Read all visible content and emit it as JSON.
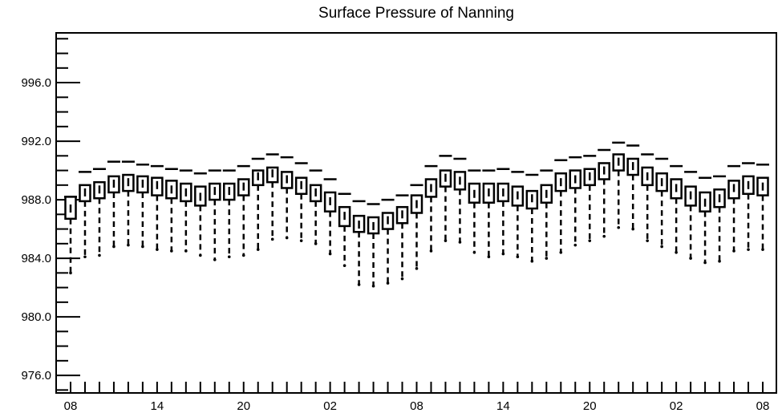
{
  "chart_data": {
    "type": "box",
    "title": "Surface Pressure of Nanning",
    "xlabel": "",
    "ylabel": "",
    "ylim": [
      974.8,
      999.4
    ],
    "y_ticks": [
      "976.0",
      "980.0",
      "984.0",
      "988.0",
      "992.0",
      "996.0"
    ],
    "x_tick_labels": [
      "08",
      "14",
      "20",
      "02",
      "08",
      "14",
      "20",
      "02",
      "08"
    ],
    "x_tick_label_index": [
      0,
      6,
      12,
      18,
      24,
      30,
      36,
      42,
      48
    ],
    "num_points": 49,
    "grid": false,
    "series": [
      {
        "whisker_high": [
          988.2,
          989.9,
          990.1,
          990.6,
          990.6,
          990.4,
          990.3,
          990.1,
          990.0,
          989.8,
          990.0,
          990.0,
          990.3,
          990.8,
          991.1,
          990.9,
          990.5,
          990.0,
          989.4,
          988.4,
          987.9,
          987.7,
          988.0,
          988.3,
          989.0,
          990.3,
          991.0,
          990.8,
          990.0,
          990.0,
          990.1,
          989.9,
          989.7,
          990.0,
          990.7,
          990.9,
          991.0,
          991.4,
          991.9,
          991.7,
          991.1,
          990.8,
          990.3,
          989.9,
          989.5,
          989.6,
          990.3,
          990.5,
          990.4
        ],
        "q3": [
          988.2,
          989.0,
          989.2,
          989.6,
          989.7,
          989.6,
          989.5,
          989.3,
          989.1,
          988.9,
          989.1,
          989.1,
          989.4,
          990.0,
          990.2,
          989.9,
          989.5,
          989.0,
          988.5,
          987.5,
          986.9,
          986.8,
          987.1,
          987.5,
          988.3,
          989.4,
          990.0,
          989.9,
          989.1,
          989.1,
          989.1,
          988.9,
          988.6,
          989.0,
          989.8,
          990.0,
          990.1,
          990.5,
          991.1,
          990.8,
          990.2,
          989.8,
          989.4,
          988.9,
          988.5,
          988.7,
          989.3,
          989.6,
          989.5
        ],
        "median": [
          987.4,
          988.5,
          988.7,
          989.1,
          989.2,
          989.1,
          989.0,
          988.7,
          988.5,
          988.2,
          988.6,
          988.6,
          988.9,
          989.6,
          989.8,
          989.4,
          989.0,
          988.5,
          987.9,
          986.9,
          986.3,
          986.2,
          986.6,
          987.0,
          987.7,
          988.8,
          989.5,
          989.3,
          988.4,
          988.5,
          988.5,
          988.3,
          988.1,
          988.4,
          989.2,
          989.4,
          989.6,
          990.0,
          990.6,
          990.3,
          989.6,
          989.2,
          988.8,
          988.3,
          987.8,
          988.1,
          988.8,
          989.0,
          988.9
        ],
        "q1": [
          986.7,
          987.9,
          988.1,
          988.5,
          988.6,
          988.5,
          988.3,
          988.1,
          987.9,
          987.6,
          988.0,
          988.0,
          988.3,
          989.0,
          989.2,
          988.8,
          988.4,
          987.9,
          987.2,
          986.2,
          985.8,
          985.7,
          986.0,
          986.4,
          987.1,
          988.2,
          988.9,
          988.7,
          987.8,
          987.8,
          987.9,
          987.6,
          987.4,
          987.8,
          988.6,
          988.8,
          989.0,
          989.4,
          990.0,
          989.7,
          989.0,
          988.6,
          988.1,
          987.6,
          987.2,
          987.5,
          988.1,
          988.4,
          988.3
        ],
        "whisker_low": [
          983.0,
          984.1,
          984.2,
          984.8,
          984.9,
          984.8,
          984.6,
          984.5,
          984.5,
          984.2,
          983.9,
          984.1,
          984.2,
          984.6,
          985.3,
          985.4,
          985.2,
          985.0,
          984.3,
          983.5,
          982.2,
          982.1,
          982.3,
          982.6,
          983.3,
          984.5,
          985.2,
          985.1,
          984.4,
          984.1,
          984.3,
          984.1,
          983.8,
          984.0,
          984.4,
          984.9,
          985.2,
          985.5,
          986.1,
          986.0,
          985.2,
          984.8,
          984.4,
          984.0,
          983.7,
          983.8,
          984.5,
          984.6,
          984.6
        ]
      }
    ]
  }
}
